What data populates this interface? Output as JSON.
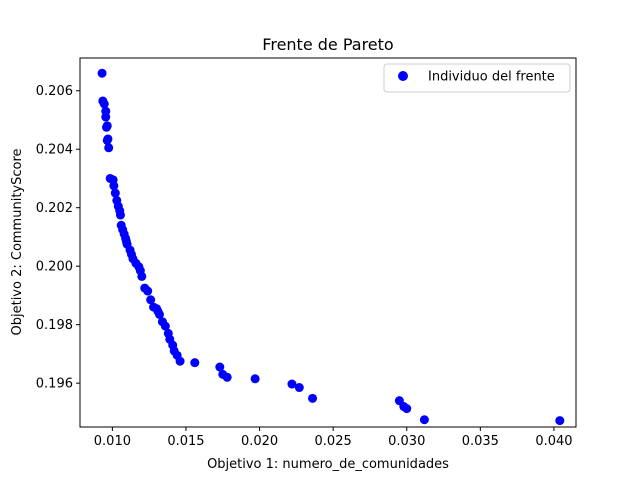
{
  "chart_data": {
    "type": "scatter",
    "title": "Frente de Pareto",
    "xlabel": "Objetivo 1: numero_de_comunidades",
    "ylabel": "Objetivo 2: CommunityScore",
    "xlim": [
      0.0078,
      0.0415
    ],
    "ylim": [
      0.1945,
      0.20712
    ],
    "xticks": [
      {
        "value": 0.01,
        "label": "0.010"
      },
      {
        "value": 0.015,
        "label": "0.015"
      },
      {
        "value": 0.02,
        "label": "0.020"
      },
      {
        "value": 0.025,
        "label": "0.025"
      },
      {
        "value": 0.03,
        "label": "0.030"
      },
      {
        "value": 0.035,
        "label": "0.035"
      },
      {
        "value": 0.04,
        "label": "0.040"
      }
    ],
    "yticks": [
      {
        "value": 0.196,
        "label": "0.196"
      },
      {
        "value": 0.198,
        "label": "0.198"
      },
      {
        "value": 0.2,
        "label": "0.200"
      },
      {
        "value": 0.202,
        "label": "0.202"
      },
      {
        "value": 0.204,
        "label": "0.204"
      },
      {
        "value": 0.206,
        "label": "0.206"
      }
    ],
    "grid": false,
    "legend_position": "top-right",
    "series": [
      {
        "name": "Individuo del frente",
        "color": "#0000ff",
        "marker": "circle",
        "points": [
          [
            0.0093,
            0.2066
          ],
          [
            0.00935,
            0.20565
          ],
          [
            0.00945,
            0.20555
          ],
          [
            0.00955,
            0.2053
          ],
          [
            0.00955,
            0.2051
          ],
          [
            0.00965,
            0.2048
          ],
          [
            0.0096,
            0.20475
          ],
          [
            0.0097,
            0.20435
          ],
          [
            0.00965,
            0.2043
          ],
          [
            0.00975,
            0.20405
          ],
          [
            0.00985,
            0.203
          ],
          [
            0.01005,
            0.20295
          ],
          [
            0.0101,
            0.20275
          ],
          [
            0.0102,
            0.2025
          ],
          [
            0.0103,
            0.20225
          ],
          [
            0.0104,
            0.20205
          ],
          [
            0.0105,
            0.2019
          ],
          [
            0.01055,
            0.20175
          ],
          [
            0.0106,
            0.2014
          ],
          [
            0.0107,
            0.20125
          ],
          [
            0.0108,
            0.2011
          ],
          [
            0.0109,
            0.20095
          ],
          [
            0.01095,
            0.20085
          ],
          [
            0.011,
            0.20075
          ],
          [
            0.0112,
            0.20055
          ],
          [
            0.0113,
            0.2004
          ],
          [
            0.0114,
            0.20025
          ],
          [
            0.0116,
            0.2001
          ],
          [
            0.0118,
            0.19998
          ],
          [
            0.0119,
            0.19985
          ],
          [
            0.012,
            0.19965
          ],
          [
            0.0122,
            0.19925
          ],
          [
            0.0124,
            0.19915
          ],
          [
            0.0126,
            0.19885
          ],
          [
            0.0128,
            0.1986
          ],
          [
            0.013,
            0.19855
          ],
          [
            0.0131,
            0.19845
          ],
          [
            0.0132,
            0.19835
          ],
          [
            0.0134,
            0.1981
          ],
          [
            0.0136,
            0.19795
          ],
          [
            0.0138,
            0.1977
          ],
          [
            0.0139,
            0.1975
          ],
          [
            0.0141,
            0.1973
          ],
          [
            0.0142,
            0.1971
          ],
          [
            0.0144,
            0.19695
          ],
          [
            0.0146,
            0.19675
          ],
          [
            0.0156,
            0.1967
          ],
          [
            0.0173,
            0.19655
          ],
          [
            0.0175,
            0.1963
          ],
          [
            0.0178,
            0.1962
          ],
          [
            0.0197,
            0.19615
          ],
          [
            0.0222,
            0.19597
          ],
          [
            0.0227,
            0.19585
          ],
          [
            0.0236,
            0.19548
          ],
          [
            0.0295,
            0.1954
          ],
          [
            0.0298,
            0.1952
          ],
          [
            0.03,
            0.19513
          ],
          [
            0.0312,
            0.19475
          ],
          [
            0.0404,
            0.19472
          ]
        ]
      }
    ]
  }
}
